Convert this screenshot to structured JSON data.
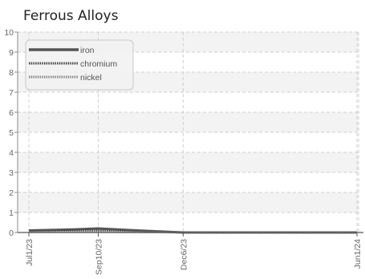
{
  "chart_data": {
    "type": "line",
    "title": "Ferrous Alloys",
    "xlabel": "",
    "ylabel": "",
    "x": [
      "2023-07-01",
      "2023-09-10",
      "2023-12-06",
      "2024-06-01"
    ],
    "x_tick_labels": [
      "Jul1/23",
      "Sep10/23",
      "Dec6/23",
      "Jun1/24"
    ],
    "ylim": [
      0,
      10
    ],
    "y_ticks": [
      "0",
      "1",
      "2",
      "3",
      "4",
      "5",
      "6",
      "7",
      "8",
      "9",
      "10"
    ],
    "grid": true,
    "legend_position": "top-left",
    "series": [
      {
        "name": "iron",
        "color": "#555555",
        "style": "solid",
        "points": [
          {
            "x": "2023-07-01",
            "y": 0.1
          },
          {
            "x": "2023-08-15",
            "y": 0.15
          },
          {
            "x": "2023-09-10",
            "y": 0.2
          },
          {
            "x": "2023-10-20",
            "y": 0.1
          },
          {
            "x": "2023-12-06",
            "y": 0.0
          },
          {
            "x": "2024-06-01",
            "y": 0.0
          }
        ]
      },
      {
        "name": "chromium",
        "color": "#444444",
        "style": "dotted",
        "points": [
          {
            "x": "2023-07-01",
            "y": 0.05
          },
          {
            "x": "2023-08-15",
            "y": 0.1
          },
          {
            "x": "2023-09-10",
            "y": 0.1
          },
          {
            "x": "2023-10-20",
            "y": 0.05
          },
          {
            "x": "2023-12-06",
            "y": 0.0
          },
          {
            "x": "2024-06-01",
            "y": 0.0
          }
        ]
      },
      {
        "name": "nickel",
        "color": "#888888",
        "style": "dotted",
        "points": [
          {
            "x": "2023-07-01",
            "y": 0.02
          },
          {
            "x": "2023-09-10",
            "y": 0.03
          },
          {
            "x": "2023-12-06",
            "y": 0.0
          },
          {
            "x": "2024-06-01",
            "y": 0.0
          }
        ]
      }
    ]
  }
}
